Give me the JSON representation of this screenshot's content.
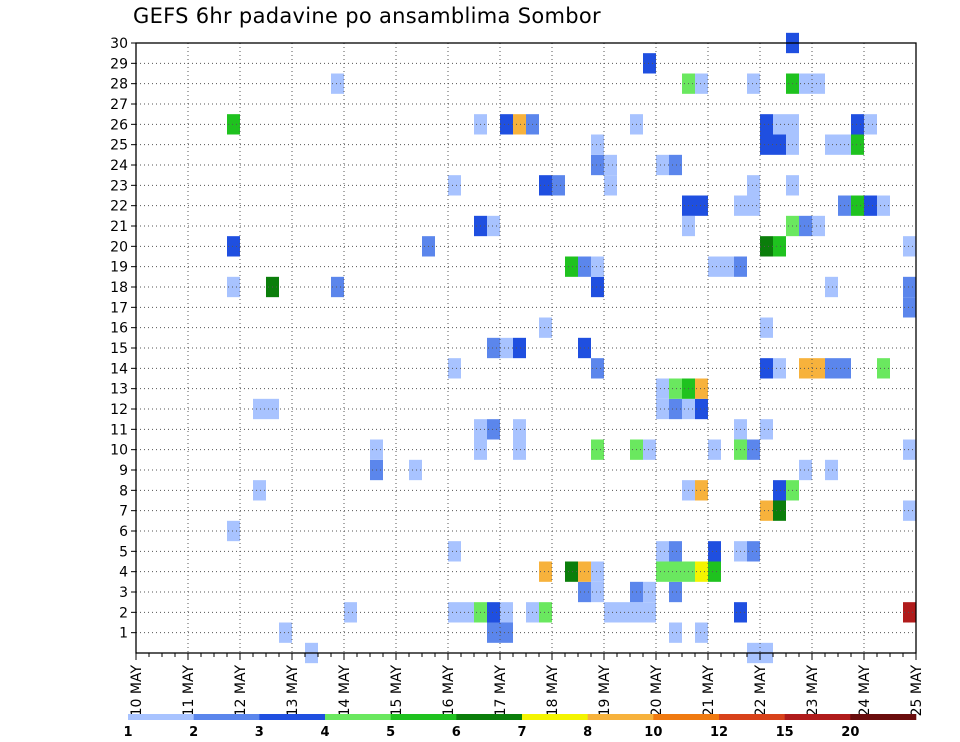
{
  "chart_data": {
    "type": "heatmap",
    "title": "GEFS 6hr padavine po ansamblima Sombor",
    "xlabel": "",
    "ylabel": "",
    "x_ticks": [
      "10 MAY",
      "11 MAY",
      "12 MAY",
      "13 MAY",
      "14 MAY",
      "15 MAY",
      "16 MAY",
      "17 MAY",
      "18 MAY",
      "19 MAY",
      "20 MAY",
      "21 MAY",
      "22 MAY",
      "23 MAY",
      "24 MAY",
      "25 MAY"
    ],
    "x_range": [
      0,
      60
    ],
    "x_unit": "6h steps since 10 MAY 00Z",
    "y_ticks": [
      "1",
      "2",
      "3",
      "4",
      "5",
      "6",
      "7",
      "8",
      "9",
      "10",
      "11",
      "12",
      "13",
      "14",
      "15",
      "16",
      "17",
      "18",
      "19",
      "20",
      "21",
      "22",
      "23",
      "24",
      "25",
      "26",
      "27",
      "28",
      "29",
      "30"
    ],
    "y_range": [
      0,
      30
    ],
    "grid": true,
    "legend_placement": "bottom",
    "legend": {
      "labels": [
        "1",
        "2",
        "3",
        "4",
        "5",
        "6",
        "7",
        "8",
        "10",
        "12",
        "15",
        "20"
      ],
      "colors": [
        "#a8c3ff",
        "#5b86ec",
        "#1f4fe0",
        "#6ae85f",
        "#1fc21f",
        "#0b7e0b",
        "#f4f400",
        "#f7b23c",
        "#f07a10",
        "#d8421a",
        "#b01b1b",
        "#6a0d0d"
      ]
    },
    "palette": [
      "#ffffff",
      "#a8c3ff",
      "#5b86ec",
      "#1f4fe0",
      "#6ae85f",
      "#1fc21f",
      "#0b7e0b",
      "#f4f400",
      "#f7b23c",
      "#f07a10",
      "#d8421a",
      "#b01b1b",
      "#6a0d0d"
    ],
    "cells": [
      [
        13,
        0,
        1
      ],
      [
        47,
        0,
        1
      ],
      [
        48,
        0,
        1
      ],
      [
        11,
        1,
        1
      ],
      [
        27,
        1,
        2
      ],
      [
        28,
        1,
        2
      ],
      [
        41,
        1,
        1
      ],
      [
        43,
        1,
        1
      ],
      [
        16,
        2,
        1
      ],
      [
        24,
        2,
        1
      ],
      [
        25,
        2,
        1
      ],
      [
        26,
        2,
        4
      ],
      [
        27,
        2,
        3
      ],
      [
        28,
        2,
        1
      ],
      [
        30,
        2,
        1
      ],
      [
        31,
        2,
        4
      ],
      [
        36,
        2,
        1
      ],
      [
        37,
        2,
        1
      ],
      [
        38,
        2,
        1
      ],
      [
        39,
        2,
        1
      ],
      [
        46,
        2,
        3
      ],
      [
        59,
        2,
        11
      ],
      [
        34,
        3,
        2
      ],
      [
        35,
        3,
        1
      ],
      [
        38,
        3,
        2
      ],
      [
        39,
        3,
        1
      ],
      [
        41,
        3,
        2
      ],
      [
        31,
        4,
        8
      ],
      [
        33,
        4,
        6
      ],
      [
        34,
        4,
        8
      ],
      [
        35,
        4,
        1
      ],
      [
        40,
        4,
        4
      ],
      [
        41,
        4,
        4
      ],
      [
        42,
        4,
        4
      ],
      [
        43,
        4,
        7
      ],
      [
        44,
        4,
        5
      ],
      [
        24,
        5,
        1
      ],
      [
        40,
        5,
        1
      ],
      [
        41,
        5,
        2
      ],
      [
        44,
        5,
        3
      ],
      [
        46,
        5,
        1
      ],
      [
        47,
        5,
        2
      ],
      [
        7,
        6,
        1
      ],
      [
        48,
        7,
        8
      ],
      [
        49,
        7,
        6
      ],
      [
        59,
        7,
        1
      ],
      [
        9,
        8,
        1
      ],
      [
        42,
        8,
        1
      ],
      [
        43,
        8,
        8
      ],
      [
        49,
        8,
        3
      ],
      [
        50,
        8,
        4
      ],
      [
        18,
        9,
        2
      ],
      [
        21,
        9,
        1
      ],
      [
        51,
        9,
        1
      ],
      [
        53,
        9,
        1
      ],
      [
        18,
        10,
        1
      ],
      [
        26,
        10,
        1
      ],
      [
        29,
        10,
        1
      ],
      [
        35,
        10,
        4
      ],
      [
        38,
        10,
        4
      ],
      [
        39,
        10,
        1
      ],
      [
        44,
        10,
        1
      ],
      [
        46,
        10,
        4
      ],
      [
        47,
        10,
        2
      ],
      [
        59,
        10,
        1
      ],
      [
        26,
        11,
        1
      ],
      [
        27,
        11,
        2
      ],
      [
        29,
        11,
        1
      ],
      [
        46,
        11,
        1
      ],
      [
        48,
        11,
        1
      ],
      [
        9,
        12,
        1
      ],
      [
        10,
        12,
        1
      ],
      [
        40,
        12,
        1
      ],
      [
        41,
        12,
        2
      ],
      [
        42,
        12,
        1
      ],
      [
        43,
        12,
        3
      ],
      [
        40,
        13,
        1
      ],
      [
        41,
        13,
        4
      ],
      [
        42,
        13,
        5
      ],
      [
        43,
        13,
        8
      ],
      [
        24,
        14,
        1
      ],
      [
        35,
        14,
        2
      ],
      [
        48,
        14,
        3
      ],
      [
        49,
        14,
        1
      ],
      [
        51,
        14,
        8
      ],
      [
        52,
        14,
        8
      ],
      [
        53,
        14,
        2
      ],
      [
        54,
        14,
        2
      ],
      [
        57,
        14,
        4
      ],
      [
        27,
        15,
        2
      ],
      [
        28,
        15,
        1
      ],
      [
        29,
        15,
        3
      ],
      [
        34,
        15,
        3
      ],
      [
        31,
        16,
        1
      ],
      [
        48,
        16,
        1
      ],
      [
        59,
        17,
        2
      ],
      [
        7,
        18,
        1
      ],
      [
        10,
        18,
        6
      ],
      [
        15,
        18,
        2
      ],
      [
        35,
        18,
        3
      ],
      [
        53,
        18,
        1
      ],
      [
        59,
        18,
        2
      ],
      [
        33,
        19,
        5
      ],
      [
        34,
        19,
        2
      ],
      [
        35,
        19,
        1
      ],
      [
        44,
        19,
        1
      ],
      [
        45,
        19,
        1
      ],
      [
        46,
        19,
        2
      ],
      [
        7,
        20,
        3
      ],
      [
        22,
        20,
        2
      ],
      [
        48,
        20,
        6
      ],
      [
        49,
        20,
        5
      ],
      [
        59,
        20,
        1
      ],
      [
        26,
        21,
        3
      ],
      [
        27,
        21,
        1
      ],
      [
        42,
        21,
        1
      ],
      [
        50,
        21,
        4
      ],
      [
        51,
        21,
        2
      ],
      [
        52,
        21,
        1
      ],
      [
        42,
        22,
        3
      ],
      [
        43,
        22,
        3
      ],
      [
        46,
        22,
        1
      ],
      [
        47,
        22,
        1
      ],
      [
        54,
        22,
        2
      ],
      [
        55,
        22,
        5
      ],
      [
        56,
        22,
        3
      ],
      [
        57,
        22,
        1
      ],
      [
        24,
        23,
        1
      ],
      [
        31,
        23,
        3
      ],
      [
        32,
        23,
        2
      ],
      [
        36,
        23,
        1
      ],
      [
        47,
        23,
        1
      ],
      [
        50,
        23,
        1
      ],
      [
        35,
        24,
        2
      ],
      [
        36,
        24,
        1
      ],
      [
        40,
        24,
        1
      ],
      [
        41,
        24,
        2
      ],
      [
        35,
        25,
        1
      ],
      [
        48,
        25,
        3
      ],
      [
        49,
        25,
        3
      ],
      [
        50,
        25,
        1
      ],
      [
        53,
        25,
        1
      ],
      [
        54,
        25,
        1
      ],
      [
        55,
        25,
        5
      ],
      [
        7,
        26,
        5
      ],
      [
        26,
        26,
        1
      ],
      [
        28,
        26,
        3
      ],
      [
        29,
        26,
        8
      ],
      [
        30,
        26,
        2
      ],
      [
        38,
        26,
        1
      ],
      [
        48,
        26,
        3
      ],
      [
        49,
        26,
        1
      ],
      [
        50,
        26,
        1
      ],
      [
        55,
        26,
        3
      ],
      [
        56,
        26,
        1
      ],
      [
        15,
        28,
        1
      ],
      [
        42,
        28,
        4
      ],
      [
        43,
        28,
        1
      ],
      [
        47,
        28,
        1
      ],
      [
        50,
        28,
        5
      ],
      [
        51,
        28,
        1
      ],
      [
        52,
        28,
        1
      ],
      [
        39,
        29,
        3
      ],
      [
        50,
        30,
        3
      ]
    ]
  }
}
